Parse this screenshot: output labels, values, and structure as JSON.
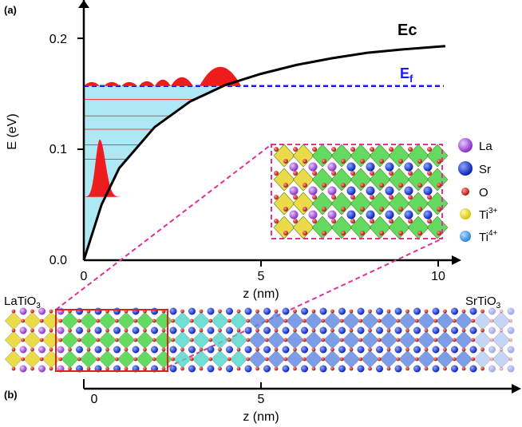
{
  "panels": {
    "a": "(a)",
    "b": "(b)"
  },
  "top_plot": {
    "ylabel": "E (eV)",
    "xlabel": "z (nm)",
    "y_ticks": [
      "0.0",
      "0.1",
      "0.2"
    ],
    "x_ticks": [
      "0",
      "5",
      "10"
    ],
    "ec_label": "Ec",
    "ef_label_main": "E",
    "ef_label_sub": "f",
    "ef_value": 0.157,
    "ec_curve": [
      [
        0,
        0.0
      ],
      [
        0.5,
        0.05
      ],
      [
        1,
        0.083
      ],
      [
        2,
        0.12
      ],
      [
        3,
        0.143
      ],
      [
        4,
        0.158
      ],
      [
        5,
        0.168
      ],
      [
        6,
        0.176
      ],
      [
        7,
        0.182
      ],
      [
        8,
        0.187
      ],
      [
        9,
        0.19
      ],
      [
        10.2,
        0.193
      ]
    ]
  },
  "legend": [
    {
      "label": "La",
      "sup": "",
      "color": "#a64bd6"
    },
    {
      "label": "Sr",
      "sup": "",
      "color": "#1f3fe0"
    },
    {
      "label": "O",
      "sup": "",
      "color": "#d42020"
    },
    {
      "label": "Ti",
      "sup": "3+",
      "color": "#f2e21e"
    },
    {
      "label": "Ti",
      "sup": "4+",
      "color": "#3fa0e8"
    }
  ],
  "bottom": {
    "left_material": "LaTiO",
    "left_sub": "3",
    "right_material": "SrTiO",
    "right_sub": "3",
    "x_ticks": [
      "0",
      "5"
    ],
    "xlabel": "z (nm)"
  }
}
